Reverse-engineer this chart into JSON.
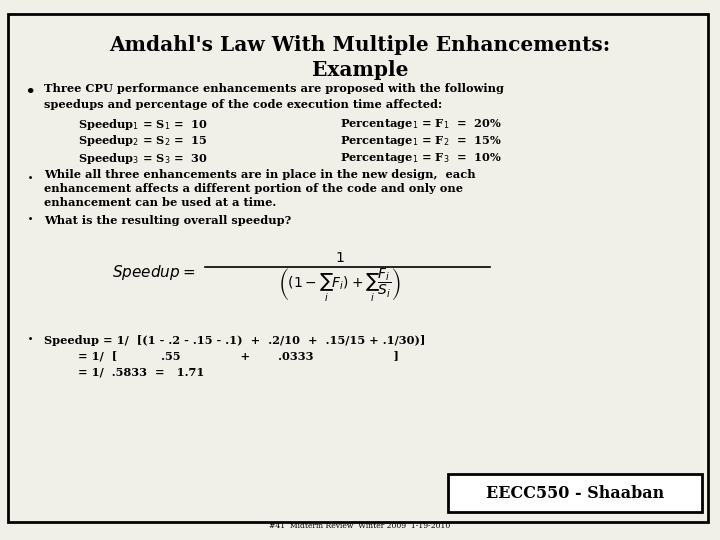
{
  "title_line1": "Amdahl's Law With Multiple Enhancements:",
  "title_line2": "Example",
  "bg_color": "#f0efe8",
  "border_color": "#000000",
  "text_color": "#000000",
  "footer_text": "EECC550 - Shaaban",
  "footer_sub": "#41  Midterm Review  Winter 2009  1-19-2010",
  "bullet1_line1": "Three CPU performance enhancements are proposed with the following",
  "bullet1_line2": "speedups and percentage of the code execution time affected:",
  "sp1": "Speedup",
  "sp2": "Speedup",
  "sp3": "Speedup",
  "pct1": "Percentage",
  "pct2": "Percentage",
  "pct3": "Percentage",
  "bullet2_line1": "While all three enhancements are in place in the new design,  each",
  "bullet2_line2": "enhancement affects a different portion of the code and only one",
  "bullet2_line3": "enhancement can be used at a time.",
  "bullet3": "What is the resulting overall speedup?",
  "calc1": "Speedup = 1/  [(1 - .2 - .15 - .1)  +  .2/10  +  .15/15 + .1/30)]",
  "calc2": "       = 1/  [           .55               +       .0333                    ]",
  "calc3": "       = 1/  .5833  =   1.71"
}
